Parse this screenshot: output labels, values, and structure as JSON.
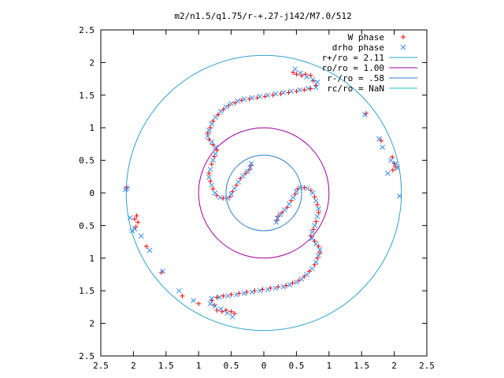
{
  "chart_data": {
    "type": "scatter",
    "title": "m2/n1.5/q1.75/r-+.27-j142/M7.0/512",
    "xlabel": "",
    "ylabel": "",
    "xlim": [
      -2.5,
      2.5
    ],
    "ylim": [
      -2.5,
      2.5
    ],
    "x_tick_values": [
      -2.5,
      -2,
      -1.5,
      -1,
      -0.5,
      0,
      0.5,
      1,
      1.5,
      2,
      2.5
    ],
    "x_tick_labels": [
      "2.5",
      "2",
      "1.5",
      "1",
      "0.5",
      "0",
      "0.5",
      "1",
      "1.5",
      "2",
      "2.5"
    ],
    "y_tick_values": [
      2.5,
      2,
      1.5,
      1,
      0.5,
      0,
      -0.5,
      -1,
      -1.5,
      -2,
      -2.5
    ],
    "y_tick_labels": [
      "2.5",
      "2",
      "1.5",
      "1",
      "0.5",
      "0",
      "0.5",
      "1",
      "1.5",
      "2",
      "2.5"
    ],
    "grid": false,
    "legend_position": "top-right",
    "series": [
      {
        "name": "W phase",
        "kind": "points",
        "marker": "plus",
        "color": "#ff0000",
        "points": [
          [
            0.45,
            1.85
          ],
          [
            0.5,
            1.82
          ],
          [
            0.58,
            1.8
          ],
          [
            0.64,
            1.82
          ],
          [
            0.72,
            1.8
          ],
          [
            0.76,
            1.72
          ],
          [
            0.8,
            1.65
          ],
          [
            0.72,
            1.6
          ],
          [
            0.62,
            1.58
          ],
          [
            0.5,
            1.56
          ],
          [
            0.38,
            1.54
          ],
          [
            0.26,
            1.52
          ],
          [
            0.14,
            1.5
          ],
          [
            0.02,
            1.48
          ],
          [
            -0.1,
            1.46
          ],
          [
            -0.22,
            1.44
          ],
          [
            -0.34,
            1.42
          ],
          [
            -0.44,
            1.38
          ],
          [
            -0.54,
            1.34
          ],
          [
            -0.62,
            1.28
          ],
          [
            -0.7,
            1.2
          ],
          [
            -0.78,
            1.1
          ],
          [
            -0.82,
            1.0
          ],
          [
            -0.86,
            0.92
          ],
          [
            -0.84,
            0.82
          ],
          [
            -0.78,
            0.74
          ],
          [
            -0.72,
            0.66
          ],
          [
            -0.76,
            0.56
          ],
          [
            -0.8,
            0.44
          ],
          [
            -0.84,
            0.3
          ],
          [
            -0.82,
            0.18
          ],
          [
            -0.78,
            0.06
          ],
          [
            -0.72,
            -0.04
          ],
          [
            -0.62,
            -0.08
          ],
          [
            -0.52,
            -0.06
          ],
          [
            -0.48,
            0.02
          ],
          [
            -0.42,
            0.12
          ],
          [
            -0.36,
            0.22
          ],
          [
            -0.28,
            0.3
          ],
          [
            -0.22,
            0.36
          ],
          [
            -0.2,
            0.42
          ],
          [
            -0.45,
            -1.85
          ],
          [
            -0.5,
            -1.82
          ],
          [
            -0.58,
            -1.8
          ],
          [
            -0.64,
            -1.82
          ],
          [
            -0.72,
            -1.8
          ],
          [
            -0.76,
            -1.72
          ],
          [
            -0.8,
            -1.65
          ],
          [
            -0.72,
            -1.6
          ],
          [
            -0.62,
            -1.58
          ],
          [
            -0.5,
            -1.56
          ],
          [
            -0.38,
            -1.54
          ],
          [
            -0.26,
            -1.52
          ],
          [
            -0.14,
            -1.5
          ],
          [
            -0.02,
            -1.48
          ],
          [
            0.1,
            -1.46
          ],
          [
            0.22,
            -1.44
          ],
          [
            0.34,
            -1.42
          ],
          [
            0.44,
            -1.38
          ],
          [
            0.54,
            -1.34
          ],
          [
            0.62,
            -1.28
          ],
          [
            0.7,
            -1.2
          ],
          [
            0.78,
            -1.1
          ],
          [
            0.82,
            -1.0
          ],
          [
            0.86,
            -0.92
          ],
          [
            0.84,
            -0.82
          ],
          [
            0.78,
            -0.74
          ],
          [
            0.72,
            -0.66
          ],
          [
            0.76,
            -0.56
          ],
          [
            0.8,
            -0.44
          ],
          [
            0.84,
            -0.3
          ],
          [
            0.82,
            -0.18
          ],
          [
            0.78,
            -0.06
          ],
          [
            0.72,
            0.04
          ],
          [
            0.62,
            0.08
          ],
          [
            0.52,
            0.06
          ],
          [
            0.48,
            -0.02
          ],
          [
            0.42,
            -0.12
          ],
          [
            0.36,
            -0.22
          ],
          [
            0.28,
            -0.3
          ],
          [
            0.22,
            -0.36
          ],
          [
            0.2,
            -0.42
          ],
          [
            -1.95,
            -0.35
          ],
          [
            -1.98,
            -0.4
          ],
          [
            -1.93,
            -0.45
          ],
          [
            -1.96,
            -0.52
          ],
          [
            -1.8,
            -0.82
          ],
          [
            -1.57,
            -1.22
          ],
          [
            -1.25,
            -1.58
          ],
          [
            -1.0,
            -1.7
          ],
          [
            1.57,
            1.22
          ],
          [
            1.8,
            0.8
          ],
          [
            1.97,
            0.55
          ],
          [
            2.0,
            0.45
          ],
          [
            1.98,
            0.35
          ],
          [
            2.02,
            0.4
          ],
          [
            -2.1,
            0.08
          ]
        ]
      },
      {
        "name": "drho phase",
        "kind": "points",
        "marker": "cross",
        "color": "#3a8fe8",
        "points": [
          [
            0.48,
            1.9
          ],
          [
            0.56,
            1.84
          ],
          [
            0.66,
            1.78
          ],
          [
            0.75,
            1.74
          ],
          [
            0.82,
            1.7
          ],
          [
            0.8,
            1.62
          ],
          [
            0.68,
            1.6
          ],
          [
            0.55,
            1.58
          ],
          [
            0.42,
            1.56
          ],
          [
            0.3,
            1.54
          ],
          [
            0.18,
            1.52
          ],
          [
            0.06,
            1.5
          ],
          [
            -0.06,
            1.48
          ],
          [
            -0.18,
            1.46
          ],
          [
            -0.3,
            1.44
          ],
          [
            -0.4,
            1.41
          ],
          [
            -0.5,
            1.37
          ],
          [
            -0.58,
            1.32
          ],
          [
            -0.66,
            1.25
          ],
          [
            -0.74,
            1.16
          ],
          [
            -0.8,
            1.06
          ],
          [
            -0.84,
            0.96
          ],
          [
            -0.86,
            0.87
          ],
          [
            -0.8,
            0.78
          ],
          [
            -0.74,
            0.7
          ],
          [
            -0.74,
            0.6
          ],
          [
            -0.78,
            0.5
          ],
          [
            -0.82,
            0.36
          ],
          [
            -0.84,
            0.24
          ],
          [
            -0.8,
            0.12
          ],
          [
            -0.75,
            0.0
          ],
          [
            -0.67,
            -0.07
          ],
          [
            -0.56,
            -0.08
          ],
          [
            -0.5,
            -0.02
          ],
          [
            -0.45,
            0.07
          ],
          [
            -0.39,
            0.17
          ],
          [
            -0.32,
            0.26
          ],
          [
            -0.25,
            0.33
          ],
          [
            -0.21,
            0.39
          ],
          [
            -0.19,
            0.45
          ],
          [
            -0.48,
            -1.9
          ],
          [
            -0.56,
            -1.84
          ],
          [
            -0.66,
            -1.78
          ],
          [
            -0.75,
            -1.74
          ],
          [
            -0.82,
            -1.7
          ],
          [
            -0.8,
            -1.62
          ],
          [
            -0.68,
            -1.6
          ],
          [
            -0.55,
            -1.58
          ],
          [
            -0.42,
            -1.56
          ],
          [
            -0.3,
            -1.54
          ],
          [
            -0.18,
            -1.52
          ],
          [
            -0.06,
            -1.5
          ],
          [
            0.06,
            -1.48
          ],
          [
            0.18,
            -1.46
          ],
          [
            0.3,
            -1.44
          ],
          [
            0.4,
            -1.41
          ],
          [
            0.5,
            -1.37
          ],
          [
            0.58,
            -1.32
          ],
          [
            0.66,
            -1.25
          ],
          [
            0.74,
            -1.16
          ],
          [
            0.8,
            -1.06
          ],
          [
            0.84,
            -0.96
          ],
          [
            0.86,
            -0.87
          ],
          [
            0.8,
            -0.78
          ],
          [
            0.74,
            -0.7
          ],
          [
            0.74,
            -0.6
          ],
          [
            0.78,
            -0.5
          ],
          [
            0.82,
            -0.36
          ],
          [
            0.84,
            -0.24
          ],
          [
            0.8,
            -0.12
          ],
          [
            0.75,
            0.0
          ],
          [
            0.67,
            0.07
          ],
          [
            0.56,
            0.08
          ],
          [
            0.5,
            0.02
          ],
          [
            0.45,
            -0.07
          ],
          [
            0.39,
            -0.17
          ],
          [
            0.32,
            -0.26
          ],
          [
            0.25,
            -0.33
          ],
          [
            0.21,
            -0.39
          ],
          [
            0.19,
            -0.45
          ],
          [
            -2.05,
            -0.38
          ],
          [
            -1.98,
            -0.55
          ],
          [
            -2.02,
            -0.58
          ],
          [
            -1.88,
            -0.66
          ],
          [
            -1.75,
            -0.88
          ],
          [
            -1.55,
            -1.2
          ],
          [
            -1.3,
            -1.5
          ],
          [
            -1.08,
            -1.65
          ],
          [
            1.55,
            1.2
          ],
          [
            1.77,
            0.83
          ],
          [
            1.82,
            0.7
          ],
          [
            1.95,
            0.5
          ],
          [
            2.02,
            0.45
          ],
          [
            2.08,
            -0.05
          ],
          [
            1.9,
            0.3
          ],
          [
            2.05,
            0.38
          ],
          [
            -2.12,
            0.05
          ],
          [
            -2.1,
            0.07
          ]
        ]
      },
      {
        "name": "r+/ro = 2.11",
        "kind": "circle",
        "radius": 2.11,
        "color": "#2fa0d2"
      },
      {
        "name": "ro/ro = 1.00",
        "kind": "circle",
        "radius": 1.0,
        "color": "#a000a0"
      },
      {
        "name": "r-/ro = .58",
        "kind": "circle",
        "radius": 0.58,
        "color": "#2f7fc9"
      },
      {
        "name": "rc/ro = NaN",
        "kind": "circle",
        "radius": null,
        "color": "#20c0d0"
      }
    ]
  }
}
